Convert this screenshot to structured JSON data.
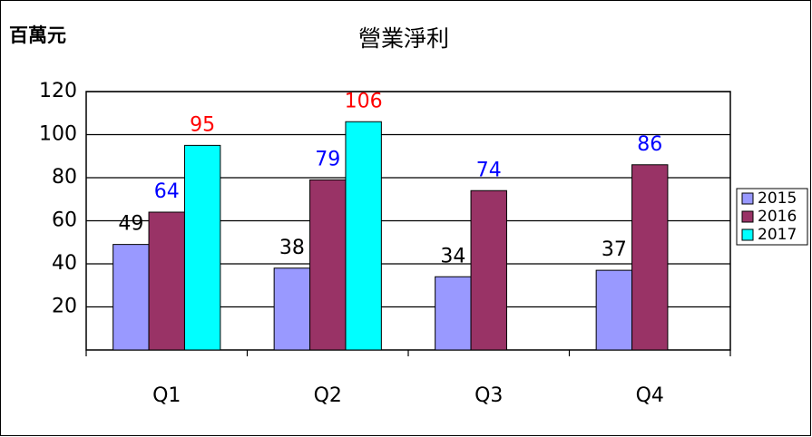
{
  "chart_data": {
    "type": "bar",
    "title": "營業淨利",
    "y_label": "百萬元",
    "categories": [
      "Q1",
      "Q2",
      "Q3",
      "Q4"
    ],
    "series": [
      {
        "name": "2015",
        "color": "#9999ff",
        "label_color": "#000000",
        "values": [
          49,
          38,
          34,
          37
        ]
      },
      {
        "name": "2016",
        "color": "#993366",
        "label_color": "#0000ff",
        "values": [
          64,
          79,
          74,
          86
        ]
      },
      {
        "name": "2017",
        "color": "#00ffff",
        "label_color": "#ff0000",
        "values": [
          95,
          106,
          null,
          null
        ]
      }
    ],
    "ylim": [
      0,
      120
    ],
    "yticks": [
      20,
      40,
      60,
      80,
      100,
      120
    ],
    "grid": true,
    "legend": "right"
  }
}
